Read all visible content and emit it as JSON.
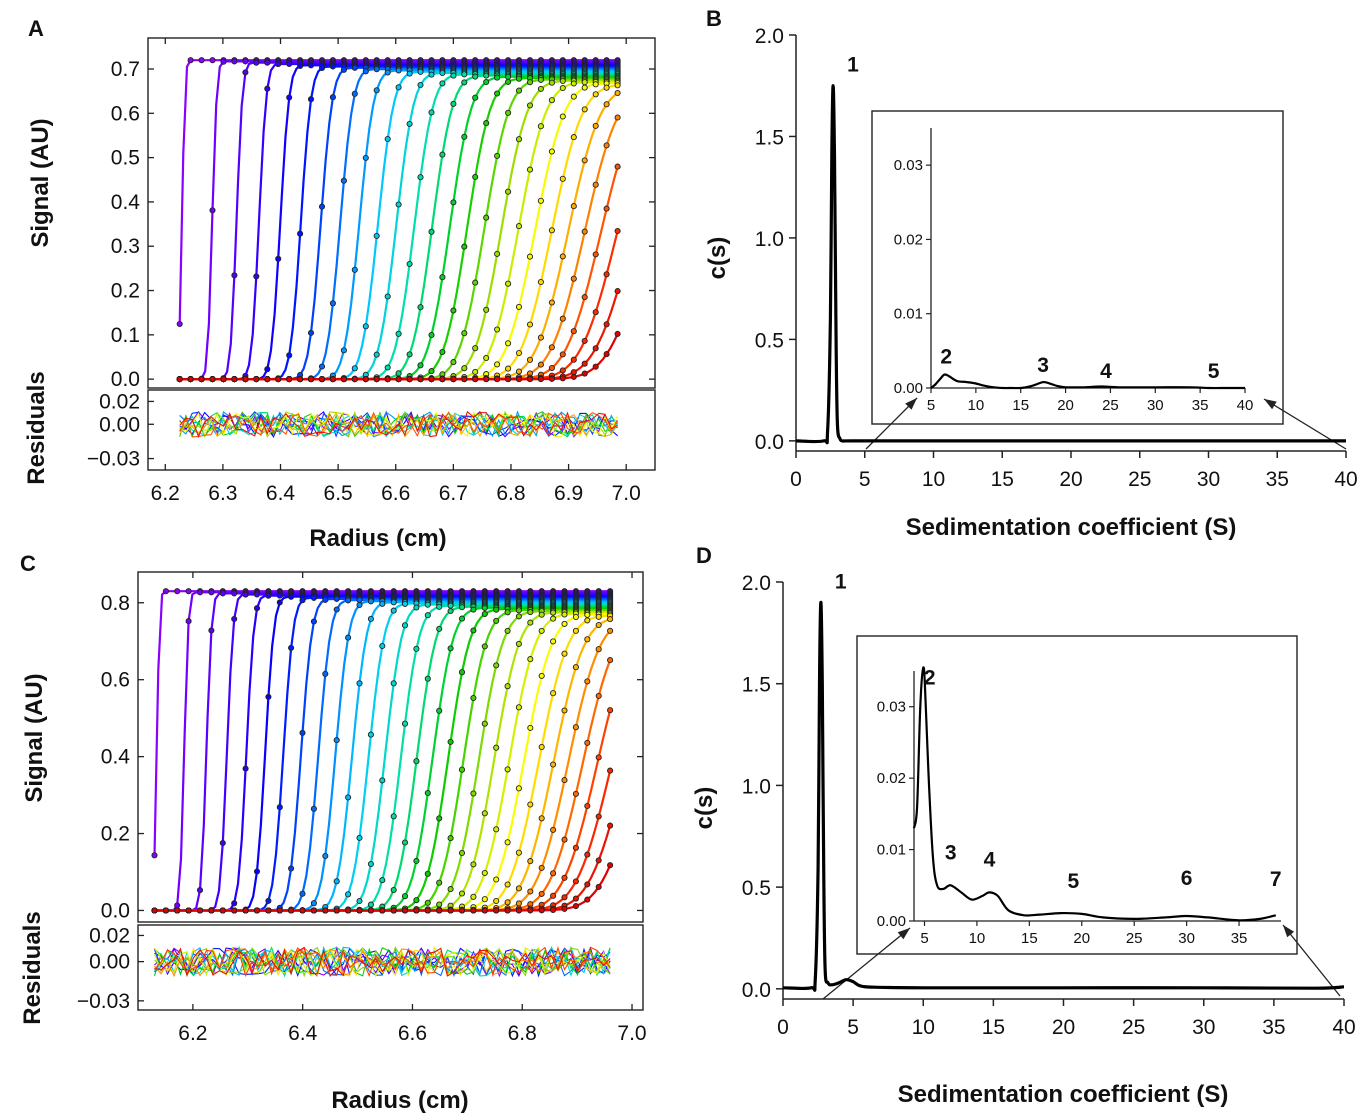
{
  "chart_data": [
    {
      "panel": "A",
      "type": "line",
      "ylabel": "Signal (AU)",
      "residuals_label": "Residuals",
      "xlabel": "Radius (cm)",
      "xticks": [
        6.2,
        6.3,
        6.4,
        6.5,
        6.6,
        6.7,
        6.8,
        6.9,
        7.0
      ],
      "xlim": [
        6.17,
        7.05
      ],
      "yticks": [
        0.0,
        0.1,
        0.2,
        0.3,
        0.4,
        0.5,
        0.6,
        0.7
      ],
      "ylim": [
        -0.02,
        0.77
      ],
      "resid_ticks": [
        "0.02",
        "0.00",
        "−0.03"
      ],
      "resid_tick_values": [
        0.02,
        0.0,
        -0.03
      ],
      "resid_lim": [
        -0.04,
        0.03
      ],
      "meniscus": 6.225,
      "bottom": 6.985,
      "plateau": 0.72,
      "scan_count": 26,
      "colors": [
        "#8b00ff",
        "#4b00ff",
        "#0000ff",
        "#0066ff",
        "#00ccff",
        "#00e0a0",
        "#00cc00",
        "#99dd00",
        "#ffff00",
        "#ff9900",
        "#ff3300",
        "#e00000"
      ]
    },
    {
      "panel": "B",
      "type": "line",
      "ylabel": "c(s)",
      "xlabel": "Sedimentation coefficient (S)",
      "xticks": [
        0,
        5,
        10,
        15,
        20,
        25,
        30,
        35,
        40
      ],
      "xlim": [
        0,
        40
      ],
      "yticks": [
        0.0,
        0.5,
        1.0,
        1.5,
        2.0
      ],
      "ylim": [
        -0.05,
        2.0
      ],
      "x": [
        0,
        2.0,
        2.3,
        2.5,
        2.6,
        2.7,
        2.8,
        2.9,
        3.0,
        3.2,
        3.5,
        4.0,
        10,
        20,
        30,
        40
      ],
      "y": [
        0,
        0,
        0.05,
        0.6,
        1.4,
        1.75,
        1.4,
        0.6,
        0.1,
        0.01,
        0.0,
        0.0,
        0.0,
        0.0,
        0.0,
        0.0
      ],
      "peak_labels": [
        {
          "label": "1",
          "x": 2.7,
          "y": 1.75
        }
      ],
      "inset": {
        "xticks": [
          5,
          10,
          15,
          20,
          25,
          30,
          35,
          40
        ],
        "xlim": [
          5,
          40
        ],
        "yticks": [
          "0.00",
          "0.01",
          "0.02",
          "0.03"
        ],
        "ytick_values": [
          0.0,
          0.01,
          0.02,
          0.03
        ],
        "ylim": [
          0,
          0.035
        ],
        "x": [
          5,
          5.5,
          6,
          6.5,
          7,
          7.5,
          8,
          9,
          10,
          11,
          12,
          13,
          14,
          15,
          16,
          17,
          17.5,
          18,
          19,
          20,
          22,
          24,
          26,
          30,
          34,
          36,
          38,
          40
        ],
        "y": [
          0.0,
          0.0005,
          0.0012,
          0.0018,
          0.0016,
          0.0012,
          0.0009,
          0.0008,
          0.0006,
          0.0003,
          0.0001,
          0.0,
          0.0,
          0.0,
          0.0002,
          0.0006,
          0.0008,
          0.0007,
          0.0003,
          0.0001,
          0.0001,
          0.0002,
          0.0001,
          0.0001,
          0.0001,
          0.0,
          0.0,
          0.0
        ],
        "peak_labels": [
          {
            "label": "2",
            "x": 6.7,
            "y": 0.0022
          },
          {
            "label": "3",
            "x": 17.5,
            "y": 0.0011
          },
          {
            "label": "4",
            "x": 24.5,
            "y": 0.0003
          },
          {
            "label": "5",
            "x": 36.5,
            "y": 0.0003
          }
        ]
      }
    },
    {
      "panel": "C",
      "type": "line",
      "ylabel": "Signal (AU)",
      "residuals_label": "Residuals",
      "xlabel": "Radius (cm)",
      "xticks": [
        6.2,
        6.4,
        6.6,
        6.8,
        7.0
      ],
      "xlim": [
        6.1,
        7.02
      ],
      "yticks": [
        0.0,
        0.2,
        0.4,
        0.6,
        0.8
      ],
      "ylim": [
        -0.03,
        0.88
      ],
      "resid_ticks": [
        "0.02",
        "0.00",
        "−0.03"
      ],
      "resid_tick_values": [
        0.02,
        0.0,
        -0.03
      ],
      "resid_lim": [
        -0.037,
        0.028
      ],
      "meniscus": 6.13,
      "bottom": 6.96,
      "plateau": 0.83,
      "scan_count": 30,
      "colors": [
        "#8b00ff",
        "#4b00ff",
        "#0000ff",
        "#0066ff",
        "#00ccff",
        "#00e0a0",
        "#00cc00",
        "#99dd00",
        "#ffff00",
        "#ff9900",
        "#ff3300",
        "#e00000"
      ]
    },
    {
      "panel": "D",
      "type": "line",
      "ylabel": "c(s)",
      "xlabel": "Sedimentation coefficient (S)",
      "xticks": [
        0,
        5,
        10,
        15,
        20,
        25,
        30,
        35,
        40
      ],
      "xlim": [
        0,
        40
      ],
      "yticks": [
        0.0,
        0.5,
        1.0,
        1.5,
        2.0
      ],
      "ylim": [
        -0.05,
        2.0
      ],
      "x": [
        0,
        2.0,
        2.3,
        2.5,
        2.6,
        2.7,
        2.8,
        2.9,
        3.0,
        3.2,
        3.5,
        4.0,
        4.5,
        5.0,
        5.5,
        6.5,
        10,
        20,
        30,
        38,
        40
      ],
      "y": [
        0.005,
        0.005,
        0.05,
        0.6,
        1.5,
        1.9,
        1.5,
        0.6,
        0.1,
        0.03,
        0.02,
        0.03,
        0.045,
        0.035,
        0.015,
        0.008,
        0.005,
        0.005,
        0.005,
        0.003,
        0.01
      ],
      "peak_labels": [
        {
          "label": "1",
          "x": 2.7,
          "y": 1.9
        }
      ],
      "inset": {
        "xticks": [
          5,
          10,
          15,
          20,
          25,
          30,
          35
        ],
        "xlim": [
          4,
          39
        ],
        "yticks": [
          "0.00",
          "0.01",
          "0.02",
          "0.03"
        ],
        "ytick_values": [
          0.0,
          0.01,
          0.02,
          0.03
        ],
        "ylim": [
          0,
          0.035
        ],
        "x": [
          4,
          4.3,
          4.6,
          4.9,
          5.1,
          5.4,
          5.8,
          6.2,
          6.8,
          7.5,
          8.5,
          9.5,
          10.5,
          11.2,
          12.0,
          13.0,
          14.5,
          16,
          18,
          20,
          22,
          25,
          28,
          30,
          32,
          35,
          37,
          38.5
        ],
        "y": [
          0.013,
          0.016,
          0.03,
          0.0355,
          0.031,
          0.02,
          0.009,
          0.005,
          0.0045,
          0.005,
          0.004,
          0.003,
          0.0035,
          0.004,
          0.0035,
          0.0015,
          0.0008,
          0.0009,
          0.0011,
          0.001,
          0.0005,
          0.0003,
          0.0005,
          0.0007,
          0.0005,
          0.0001,
          0.0003,
          0.0008
        ],
        "peak_labels": [
          {
            "label": "2",
            "x": 5.5,
            "y": 0.032
          },
          {
            "label": "3",
            "x": 7.5,
            "y": 0.0075
          },
          {
            "label": "4",
            "x": 11.2,
            "y": 0.0065
          },
          {
            "label": "5",
            "x": 19.2,
            "y": 0.0035
          },
          {
            "label": "6",
            "x": 30.0,
            "y": 0.0039
          },
          {
            "label": "7",
            "x": 38.5,
            "y": 0.0038
          }
        ]
      }
    }
  ]
}
